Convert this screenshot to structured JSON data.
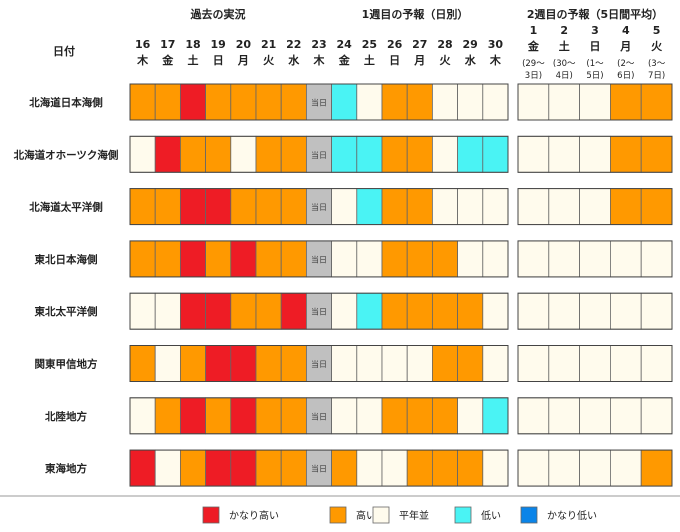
{
  "header": {
    "col_label": "日付",
    "section_past": "過去の実況",
    "section_week1": "1週目の予報（日別）",
    "section_week2": "2週目の予報（5日間平均）"
  },
  "colors": {
    "very_high": "#ee1c25",
    "high": "#ff9900",
    "normal": "#fffbed",
    "low": "#4af3f4",
    "very_low": "#0a84e8",
    "today": "#c0c0c0",
    "grid": "#666666"
  },
  "chart_data": {
    "type": "heatmap",
    "level_names": [
      "かなり高い",
      "高い",
      "平年並",
      "低い",
      "かなり低い"
    ],
    "today_label": "当日",
    "days": [
      {
        "d": "16",
        "w": "木"
      },
      {
        "d": "17",
        "w": "金"
      },
      {
        "d": "18",
        "w": "土"
      },
      {
        "d": "19",
        "w": "日"
      },
      {
        "d": "20",
        "w": "月"
      },
      {
        "d": "21",
        "w": "火"
      },
      {
        "d": "22",
        "w": "水"
      },
      {
        "d": "23",
        "w": "木"
      },
      {
        "d": "24",
        "w": "金"
      },
      {
        "d": "25",
        "w": "土"
      },
      {
        "d": "26",
        "w": "日"
      },
      {
        "d": "27",
        "w": "月"
      },
      {
        "d": "28",
        "w": "火"
      },
      {
        "d": "29",
        "w": "水"
      },
      {
        "d": "30",
        "w": "木"
      }
    ],
    "today_index": 7,
    "week2": [
      {
        "n": "1",
        "w": "金",
        "r1": "(29〜",
        "r2": "3日)"
      },
      {
        "n": "2",
        "w": "土",
        "r1": "(30〜",
        "r2": "4日)"
      },
      {
        "n": "3",
        "w": "日",
        "r1": "(1〜",
        "r2": "5日)"
      },
      {
        "n": "4",
        "w": "月",
        "r1": "(2〜",
        "r2": "6日)"
      },
      {
        "n": "5",
        "w": "火",
        "r1": "(3〜",
        "r2": "7日)"
      }
    ],
    "regions": [
      {
        "name": "北海道日本海側",
        "daily": [
          "high",
          "high",
          "very_high",
          "high",
          "high",
          "high",
          "high",
          "today",
          "low",
          "normal",
          "high",
          "high",
          "normal",
          "normal",
          "normal"
        ],
        "week2": [
          "normal",
          "normal",
          "normal",
          "high",
          "high"
        ]
      },
      {
        "name": "北海道オホーツク海側",
        "daily": [
          "normal",
          "very_high",
          "high",
          "high",
          "normal",
          "high",
          "high",
          "today",
          "low",
          "low",
          "high",
          "high",
          "normal",
          "low",
          "low"
        ],
        "week2": [
          "normal",
          "normal",
          "normal",
          "high",
          "high"
        ]
      },
      {
        "name": "北海道太平洋側",
        "daily": [
          "high",
          "high",
          "very_high",
          "very_high",
          "high",
          "high",
          "high",
          "today",
          "normal",
          "low",
          "high",
          "high",
          "normal",
          "normal",
          "normal"
        ],
        "week2": [
          "normal",
          "normal",
          "normal",
          "high",
          "high"
        ]
      },
      {
        "name": "東北日本海側",
        "daily": [
          "high",
          "high",
          "very_high",
          "high",
          "very_high",
          "high",
          "high",
          "today",
          "normal",
          "normal",
          "high",
          "high",
          "high",
          "normal",
          "normal"
        ],
        "week2": [
          "normal",
          "normal",
          "normal",
          "normal",
          "normal"
        ]
      },
      {
        "name": "東北太平洋側",
        "daily": [
          "normal",
          "normal",
          "very_high",
          "very_high",
          "high",
          "high",
          "very_high",
          "today",
          "normal",
          "low",
          "high",
          "high",
          "high",
          "high",
          "normal"
        ],
        "week2": [
          "normal",
          "normal",
          "normal",
          "normal",
          "normal"
        ]
      },
      {
        "name": "関東甲信地方",
        "daily": [
          "high",
          "normal",
          "high",
          "very_high",
          "very_high",
          "high",
          "high",
          "today",
          "normal",
          "normal",
          "normal",
          "normal",
          "high",
          "high",
          "normal"
        ],
        "week2": [
          "normal",
          "normal",
          "normal",
          "normal",
          "normal"
        ]
      },
      {
        "name": "北陸地方",
        "daily": [
          "normal",
          "high",
          "very_high",
          "high",
          "very_high",
          "high",
          "high",
          "today",
          "normal",
          "normal",
          "high",
          "high",
          "high",
          "normal",
          "low"
        ],
        "week2": [
          "normal",
          "normal",
          "normal",
          "normal",
          "normal"
        ]
      },
      {
        "name": "東海地方",
        "daily": [
          "very_high",
          "normal",
          "high",
          "very_high",
          "very_high",
          "high",
          "high",
          "today",
          "high",
          "normal",
          "normal",
          "high",
          "high",
          "high",
          "normal"
        ],
        "week2": [
          "normal",
          "normal",
          "normal",
          "normal",
          "high"
        ]
      }
    ],
    "legend": [
      {
        "key": "very_high",
        "label": "かなり高い"
      },
      {
        "key": "high",
        "label": "高い"
      },
      {
        "key": "normal",
        "label": "平年並"
      },
      {
        "key": "low",
        "label": "低い"
      },
      {
        "key": "very_low",
        "label": "かなり低い"
      }
    ]
  }
}
